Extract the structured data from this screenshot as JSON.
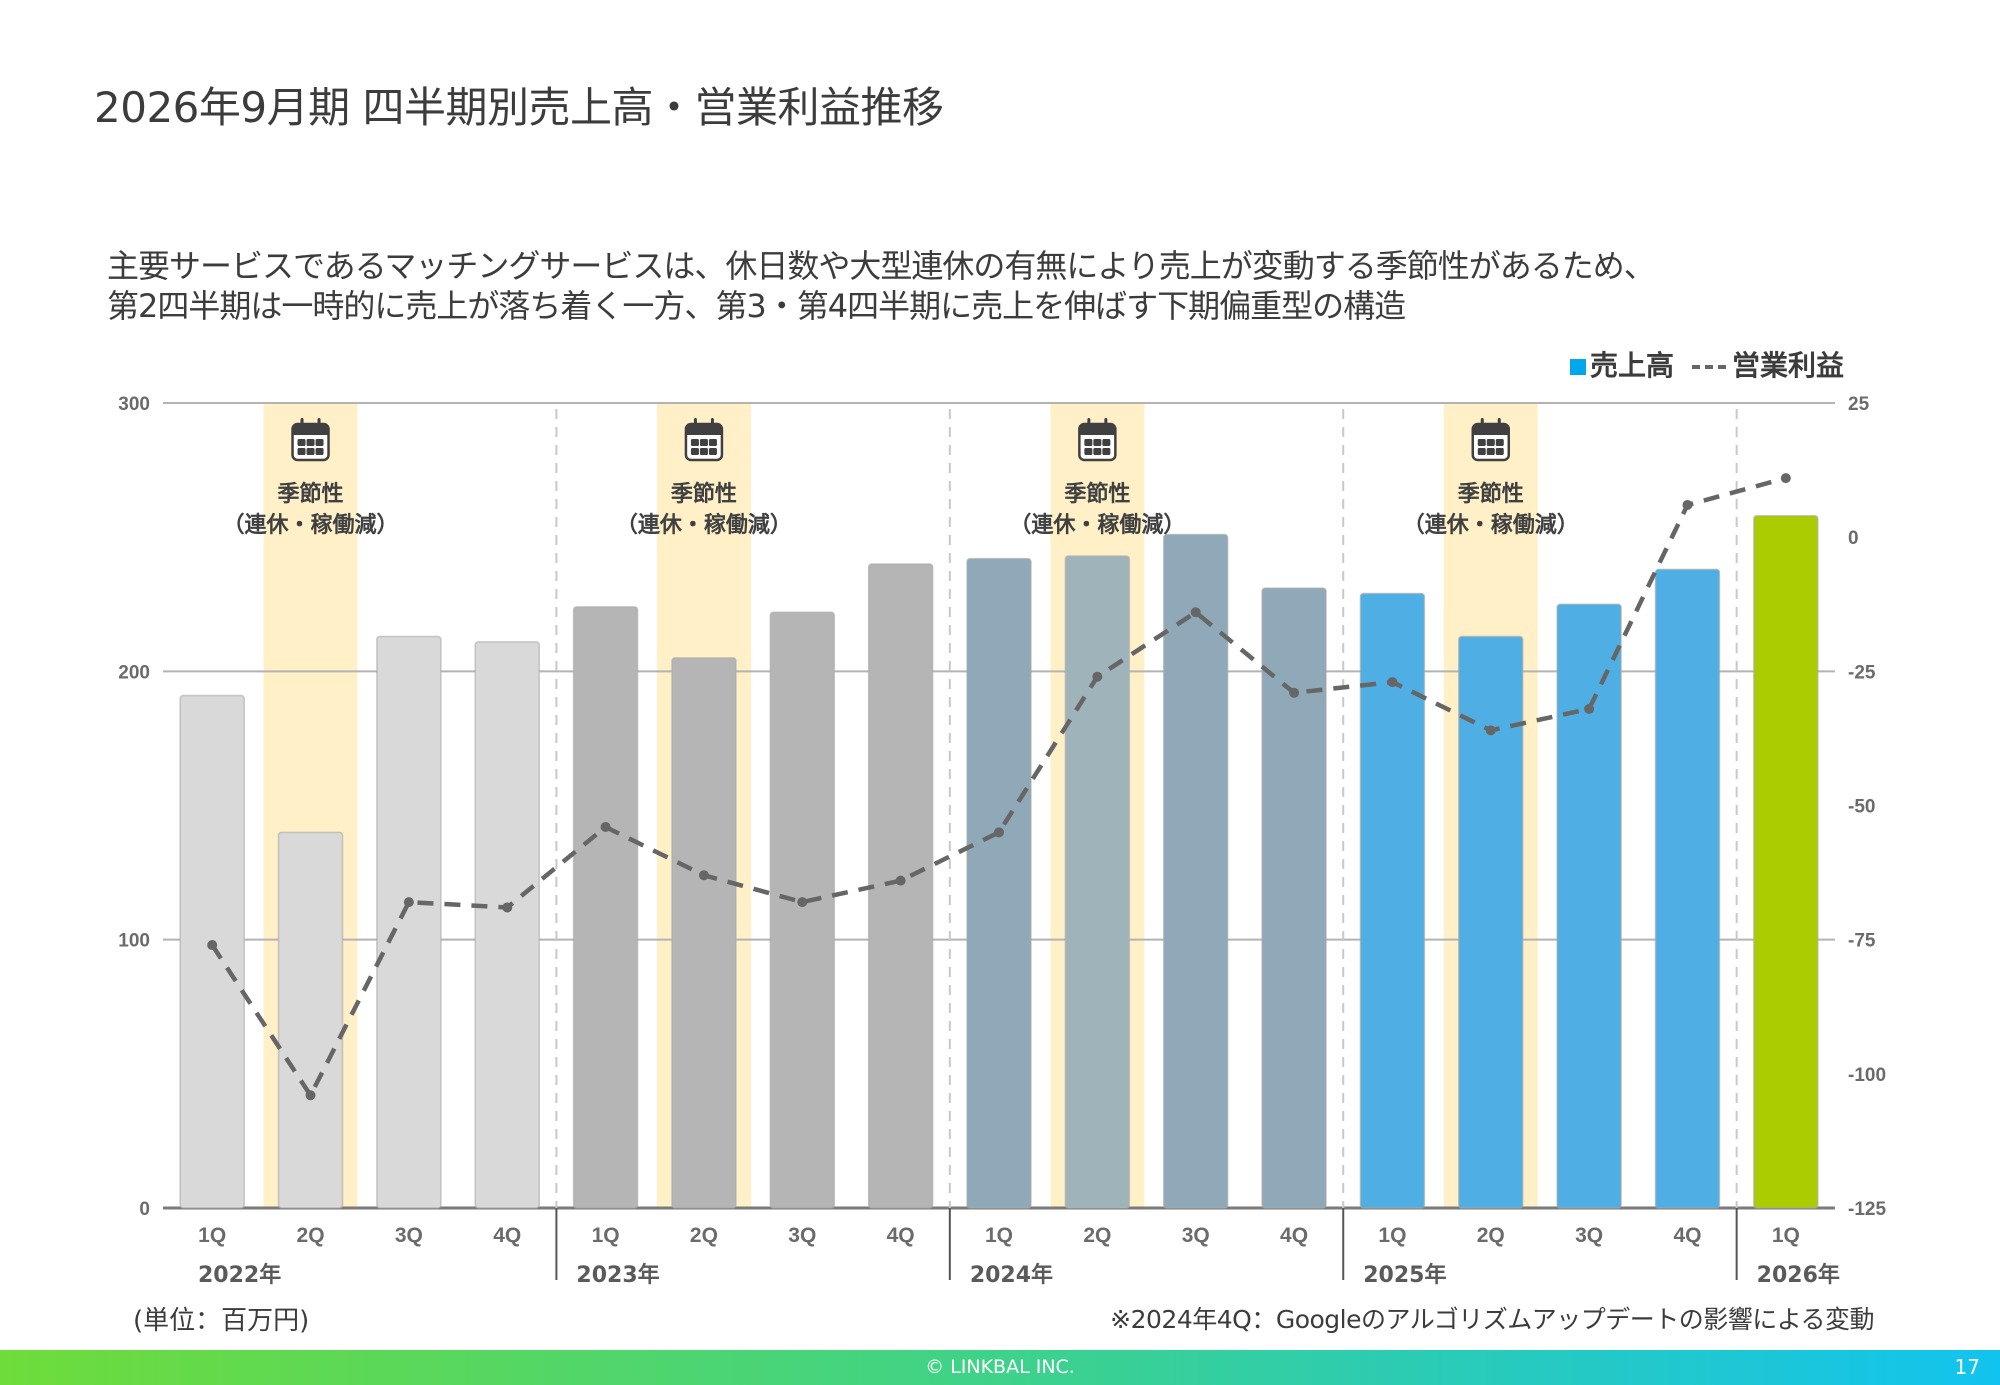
{
  "page": {
    "title": "2026年9月期 四半期別売上高・営業利益推移",
    "description_lines": [
      "主要サービスであるマッチングサービスは、休日数や大型連休の有無により売上が変動する季節性があるため、",
      "第2四半期は一時的に売上が落ち着く一方、第3・第4四半期に売上を伸ばす下期偏重型の構造"
    ],
    "unit_label": "(単位：百万円)",
    "footnote": "※2024年4Q：Googleのアルゴリズムアップデートの影響による変動",
    "footer_copyright": "© LINKBAL INC.",
    "page_number": "17"
  },
  "legend": {
    "sales_label": "売上高",
    "profit_label": "営業利益",
    "sales_swatch_color": "#00a7ea",
    "profit_line_color": "#666666"
  },
  "seasonal_annotation": {
    "icon": "calendar-icon",
    "line1": "季節性",
    "line2": "（連休・稼働減）",
    "band_color": "#fff0c8"
  },
  "chart_data": {
    "type": "bar",
    "title": "",
    "categories": [
      "1Q",
      "2Q",
      "3Q",
      "4Q",
      "1Q",
      "2Q",
      "3Q",
      "4Q",
      "1Q",
      "2Q",
      "3Q",
      "4Q",
      "1Q",
      "2Q",
      "3Q",
      "4Q",
      "1Q"
    ],
    "year_groups": [
      {
        "label": "2022年",
        "count": 4,
        "bar_color": "#d9d9d9"
      },
      {
        "label": "2023年",
        "count": 4,
        "bar_color": "#b5b5b5"
      },
      {
        "label": "2024年",
        "count": 4,
        "bar_color": "#8fa9b8"
      },
      {
        "label": "2025年",
        "count": 4,
        "bar_color": "#4fafe4"
      },
      {
        "label": "2026年",
        "count": 1,
        "bar_color": "#aacc00"
      }
    ],
    "seasonal_highlight_indices": [
      1,
      5,
      9,
      13
    ],
    "series": [
      {
        "name": "売上高",
        "type": "bar",
        "axis": "left",
        "values": [
          191,
          140,
          213,
          211,
          224,
          205,
          222,
          240,
          242,
          243,
          251,
          231,
          229,
          213,
          225,
          238,
          258
        ]
      },
      {
        "name": "営業利益",
        "type": "line",
        "axis": "right",
        "style": "dashed",
        "values": [
          -76,
          -104,
          -68,
          -69,
          -54,
          -63,
          -68,
          -64,
          -55,
          -26,
          -14,
          -29,
          -27,
          -36,
          -32,
          6,
          11
        ]
      }
    ],
    "y_left": {
      "min": 0,
      "max": 300,
      "ticks": [
        0,
        100,
        200,
        300
      ]
    },
    "y_right": {
      "min": -125,
      "max": 25,
      "ticks": [
        25,
        0,
        -25,
        -50,
        -75,
        -100,
        -125
      ]
    },
    "xlabel": "",
    "ylabel": "",
    "grid": true,
    "legend_position": "top-right"
  }
}
